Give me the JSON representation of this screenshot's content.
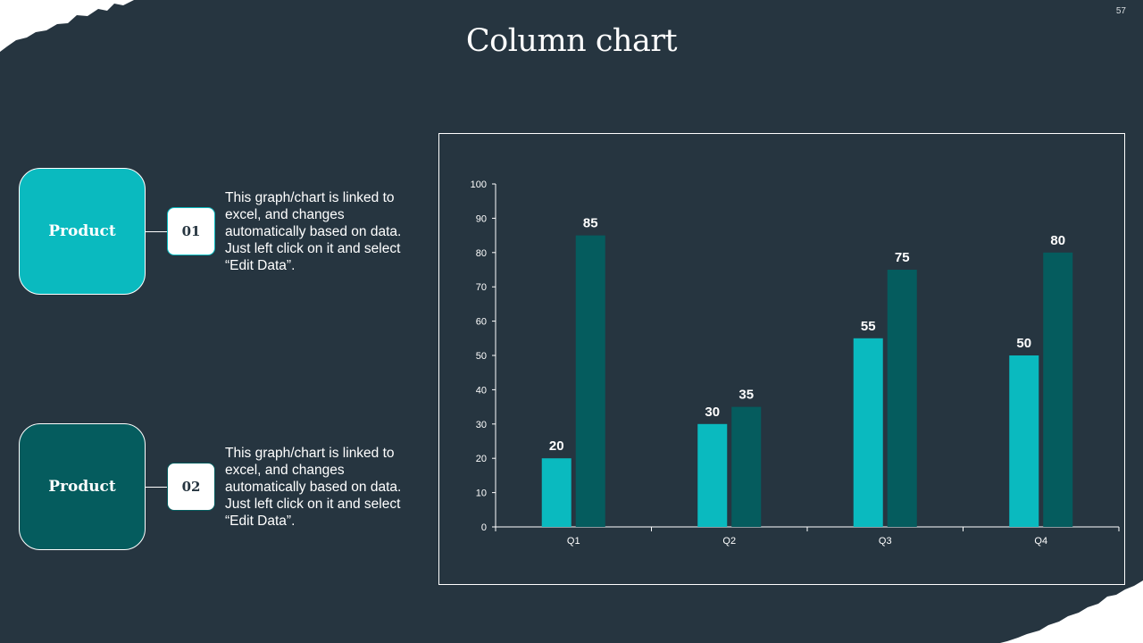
{
  "slide_number": "57",
  "title": "Column chart",
  "products": [
    {
      "label": "Product",
      "badge": "01",
      "description": "This graph/chart is linked to excel, and changes automatically based on data. Just left click on it and select “Edit Data”.",
      "color": "#0ababf"
    },
    {
      "label": "Product",
      "badge": "02",
      "description": "This graph/chart is linked to excel, and changes automatically based on data. Just left click on it and select “Edit Data”.",
      "color": "#055c5e"
    }
  ],
  "chart_data": {
    "type": "bar",
    "categories": [
      "Q1",
      "Q2",
      "Q3",
      "Q4"
    ],
    "series": [
      {
        "values": [
          20,
          30,
          55,
          50
        ],
        "color": "#0ababf"
      },
      {
        "values": [
          85,
          35,
          75,
          80
        ],
        "color": "#055c5e"
      }
    ],
    "yticks": [
      0,
      10,
      20,
      30,
      40,
      50,
      60,
      70,
      80,
      90,
      100
    ],
    "ylim": [
      0,
      100
    ],
    "grid": false,
    "data_labels": true
  }
}
